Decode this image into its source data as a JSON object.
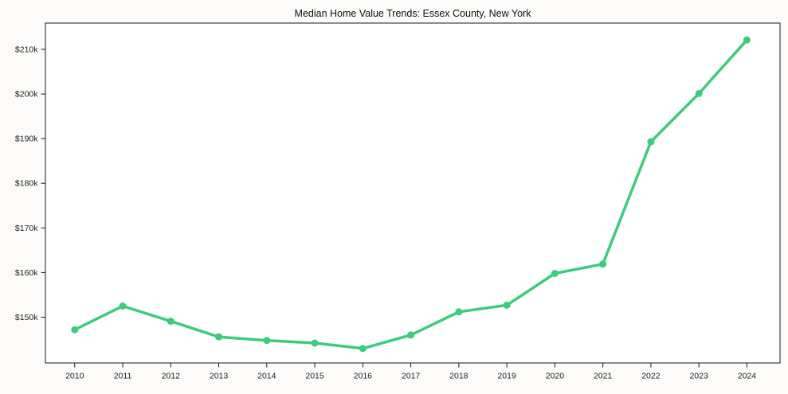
{
  "page": {
    "background_color": "#fcfbf9",
    "plot_background_color": "#ffffff"
  },
  "chart_data": {
    "type": "line",
    "title": "Median Home Value Trends: Essex County, New York",
    "x": [
      2010,
      2011,
      2012,
      2013,
      2014,
      2015,
      2016,
      2017,
      2018,
      2019,
      2020,
      2021,
      2022,
      2023,
      2024
    ],
    "series": [
      {
        "name": "Median Home Value",
        "values": [
          147200,
          152500,
          149100,
          145600,
          144800,
          144200,
          143000,
          146000,
          151200,
          152700,
          159800,
          161900,
          189300,
          200100,
          212100
        ]
      }
    ],
    "x_tick_labels": [
      "2010",
      "2011",
      "2012",
      "2013",
      "2014",
      "2015",
      "2016",
      "2017",
      "2018",
      "2019",
      "2020",
      "2021",
      "2022",
      "2023",
      "2024"
    ],
    "y_ticks": [
      {
        "value": 150000,
        "label": "$150k"
      },
      {
        "value": 160000,
        "label": "$160k"
      },
      {
        "value": 170000,
        "label": "$170k"
      },
      {
        "value": 180000,
        "label": "$180k"
      },
      {
        "value": 190000,
        "label": "$190k"
      },
      {
        "value": 200000,
        "label": "$200k"
      },
      {
        "value": 210000,
        "label": "$210k"
      }
    ],
    "xlim": [
      2009.39,
      2024.69
    ],
    "ylim": [
      139750,
      215880
    ],
    "grid": false,
    "legend_position": "none",
    "line_color": "#3dcb7d",
    "marker": "circle",
    "axis_color": "#1a1a1a",
    "tick_label_color": "#222222",
    "title_color": "#111111"
  }
}
